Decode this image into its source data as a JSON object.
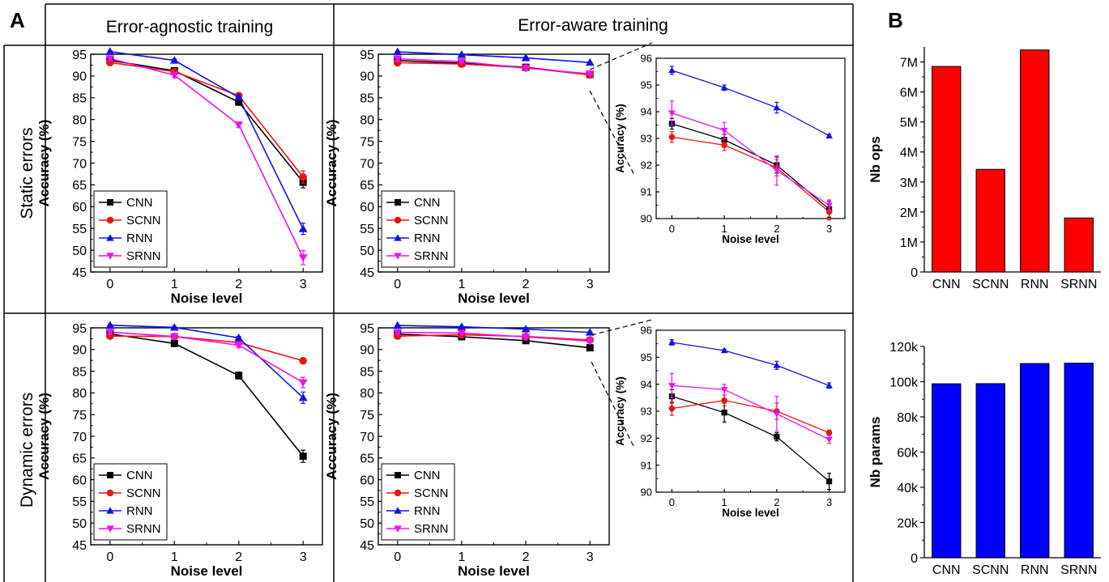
{
  "panel_labels": {
    "a": "A",
    "b": "B"
  },
  "column_headers": [
    "Error-agnostic training",
    "Error-aware training"
  ],
  "row_headers": [
    "Static errors",
    "Dynamic errors"
  ],
  "colors": {
    "CNN": "#000000",
    "SCNN": "#ee1111",
    "RNN": "#1111ee",
    "SRNN": "#ee11ee"
  },
  "chart_data": [
    {
      "id": "static-agnostic",
      "type": "line",
      "x": [
        0,
        1,
        2,
        3
      ],
      "xlabel": "Noise level",
      "ylabel": "Accuracy (%)",
      "ylim": [
        45,
        95
      ],
      "yticks": [
        45,
        50,
        55,
        60,
        65,
        70,
        75,
        80,
        85,
        90,
        95
      ],
      "legend": "bottom-left",
      "series": [
        {
          "name": "CNN",
          "values": [
            93.6,
            91.2,
            84.0,
            65.6
          ],
          "errors": [
            0.3,
            0.4,
            0.6,
            1.3
          ]
        },
        {
          "name": "SCNN",
          "values": [
            93.1,
            91.0,
            85.5,
            66.8
          ],
          "errors": [
            0.3,
            0.4,
            0.5,
            1.4
          ]
        },
        {
          "name": "RNN",
          "values": [
            95.6,
            93.6,
            85.1,
            54.9
          ],
          "errors": [
            0.2,
            0.3,
            0.5,
            1.3
          ]
        },
        {
          "name": "SRNN",
          "values": [
            94.0,
            90.2,
            78.8,
            48.3
          ],
          "errors": [
            0.4,
            0.6,
            0.6,
            1.6
          ]
        }
      ]
    },
    {
      "id": "static-aware",
      "type": "line",
      "x": [
        0,
        1,
        2,
        3
      ],
      "xlabel": "Noise level",
      "ylabel": "Accuracy (%)",
      "ylim": [
        45,
        95
      ],
      "yticks": [
        45,
        50,
        55,
        60,
        65,
        70,
        75,
        80,
        85,
        90,
        95
      ],
      "legend": "bottom-left",
      "series": [
        {
          "name": "CNN",
          "values": [
            93.55,
            92.95,
            92.0,
            90.35
          ],
          "errors": [
            0.2,
            0.2,
            0.3,
            0.3
          ]
        },
        {
          "name": "SCNN",
          "values": [
            93.05,
            92.75,
            91.9,
            90.25
          ],
          "errors": [
            0.2,
            0.2,
            0.3,
            0.3
          ]
        },
        {
          "name": "RNN",
          "values": [
            95.55,
            94.9,
            94.15,
            93.1
          ],
          "errors": [
            0.15,
            0.1,
            0.2,
            0.05
          ]
        },
        {
          "name": "SRNN",
          "values": [
            93.95,
            93.3,
            91.8,
            90.5
          ],
          "errors": [
            0.45,
            0.3,
            0.55,
            0.2
          ]
        }
      ]
    },
    {
      "id": "static-aware-zoom",
      "type": "line",
      "x": [
        0,
        1,
        2,
        3
      ],
      "xlabel": "Noise level",
      "ylabel": "Accuracy (%)",
      "ylim": [
        90,
        96
      ],
      "yticks": [
        90,
        91,
        92,
        93,
        94,
        95,
        96
      ],
      "series": [
        {
          "name": "CNN",
          "values": [
            93.55,
            92.95,
            92.0,
            90.35
          ],
          "errors": [
            0.2,
            0.2,
            0.3,
            0.3
          ]
        },
        {
          "name": "SCNN",
          "values": [
            93.05,
            92.75,
            91.9,
            90.25
          ],
          "errors": [
            0.2,
            0.2,
            0.3,
            0.3
          ]
        },
        {
          "name": "RNN",
          "values": [
            95.55,
            94.9,
            94.15,
            93.1
          ],
          "errors": [
            0.15,
            0.1,
            0.2,
            0.05
          ]
        },
        {
          "name": "SRNN",
          "values": [
            93.95,
            93.3,
            91.8,
            90.5
          ],
          "errors": [
            0.45,
            0.3,
            0.55,
            0.2
          ]
        }
      ]
    },
    {
      "id": "dynamic-agnostic",
      "type": "line",
      "x": [
        0,
        1,
        2,
        3
      ],
      "xlabel": "Noise level",
      "ylabel": "Accuracy (%)",
      "ylim": [
        45,
        95
      ],
      "yticks": [
        45,
        50,
        55,
        60,
        65,
        70,
        75,
        80,
        85,
        90,
        95
      ],
      "legend": "bottom-left",
      "series": [
        {
          "name": "CNN",
          "values": [
            93.6,
            91.4,
            84.0,
            65.4
          ],
          "errors": [
            0.3,
            0.4,
            0.8,
            1.4
          ]
        },
        {
          "name": "SCNN",
          "values": [
            93.1,
            93.0,
            91.6,
            87.4
          ],
          "errors": [
            0.3,
            0.3,
            0.4,
            0.5
          ]
        },
        {
          "name": "RNN",
          "values": [
            95.6,
            95.1,
            92.7,
            78.9
          ],
          "errors": [
            0.2,
            0.2,
            0.3,
            1.3
          ]
        },
        {
          "name": "SRNN",
          "values": [
            94.0,
            93.0,
            91.0,
            82.4
          ],
          "errors": [
            0.4,
            0.3,
            0.5,
            1.2
          ]
        }
      ]
    },
    {
      "id": "dynamic-aware",
      "type": "line",
      "x": [
        0,
        1,
        2,
        3
      ],
      "xlabel": "Noise level",
      "ylabel": "Accuracy (%)",
      "ylim": [
        45,
        95
      ],
      "yticks": [
        45,
        50,
        55,
        60,
        65,
        70,
        75,
        80,
        85,
        90,
        95
      ],
      "legend": "bottom-left",
      "series": [
        {
          "name": "CNN",
          "values": [
            93.55,
            92.95,
            92.05,
            90.4
          ],
          "errors": [
            0.25,
            0.35,
            0.15,
            0.3
          ]
        },
        {
          "name": "SCNN",
          "values": [
            93.1,
            93.4,
            93.0,
            92.2
          ],
          "errors": [
            0.25,
            0.2,
            0.3,
            0.1
          ]
        },
        {
          "name": "RNN",
          "values": [
            95.55,
            95.25,
            94.7,
            93.95
          ],
          "errors": [
            0.1,
            0.05,
            0.15,
            0.1
          ]
        },
        {
          "name": "SRNN",
          "values": [
            93.95,
            93.8,
            92.9,
            91.95
          ],
          "errors": [
            0.45,
            0.2,
            0.65,
            0.15
          ]
        }
      ]
    },
    {
      "id": "dynamic-aware-zoom",
      "type": "line",
      "x": [
        0,
        1,
        2,
        3
      ],
      "xlabel": "Noise level",
      "ylabel": "Accuracy (%)",
      "ylim": [
        90,
        96
      ],
      "yticks": [
        90,
        91,
        92,
        93,
        94,
        95,
        96
      ],
      "series": [
        {
          "name": "CNN",
          "values": [
            93.55,
            92.95,
            92.05,
            90.4
          ],
          "errors": [
            0.25,
            0.35,
            0.15,
            0.3
          ]
        },
        {
          "name": "SCNN",
          "values": [
            93.1,
            93.4,
            93.0,
            92.2
          ],
          "errors": [
            0.25,
            0.2,
            0.3,
            0.1
          ]
        },
        {
          "name": "RNN",
          "values": [
            95.55,
            95.25,
            94.7,
            93.95
          ],
          "errors": [
            0.1,
            0.05,
            0.15,
            0.1
          ]
        },
        {
          "name": "SRNN",
          "values": [
            93.95,
            93.8,
            92.9,
            91.95
          ],
          "errors": [
            0.45,
            0.2,
            0.65,
            0.15
          ]
        }
      ]
    },
    {
      "id": "ops",
      "type": "bar",
      "categories": [
        "CNN",
        "SCNN",
        "RNN",
        "SRNN"
      ],
      "values": [
        6850000,
        3420000,
        7400000,
        1800000
      ],
      "ylabel": "Nb ops",
      "ylim": [
        0,
        7500000
      ],
      "yticks": [
        0,
        1000000,
        2000000,
        3000000,
        4000000,
        5000000,
        6000000,
        7000000
      ],
      "ytick_labels": [
        "0",
        "1M",
        "2M",
        "3M",
        "4M",
        "5M",
        "6M",
        "7M"
      ],
      "color": "#ff0000"
    },
    {
      "id": "params",
      "type": "bar",
      "categories": [
        "CNN",
        "SCNN",
        "RNN",
        "SRNN"
      ],
      "values": [
        98800,
        98900,
        110300,
        110500
      ],
      "ylabel": "Nb params",
      "ylim": [
        0,
        120000
      ],
      "yticks": [
        0,
        20000,
        40000,
        60000,
        80000,
        100000,
        120000
      ],
      "ytick_labels": [
        "0",
        "20k",
        "40k",
        "60k",
        "80k",
        "100k",
        "120k"
      ],
      "color": "#0000ff"
    }
  ]
}
